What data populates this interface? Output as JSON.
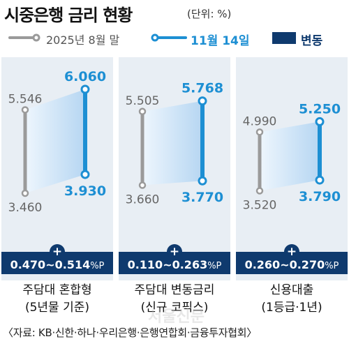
{
  "header": {
    "title": "시중은행 금리 현황",
    "unit": "(단위: %)"
  },
  "legend": {
    "items": [
      {
        "label": "2025년 8월 말",
        "color": "#9a9a9a",
        "kind": "line"
      },
      {
        "label": "11월 14일",
        "color": "#1d8fd3",
        "kind": "line"
      },
      {
        "label": "변동",
        "color": "#0f3a6e",
        "kind": "block"
      }
    ]
  },
  "chart_data": {
    "type": "range",
    "series": [
      {
        "name": "2025년 8월 말"
      },
      {
        "name": "11월 14일"
      }
    ],
    "panels": [
      {
        "category_lines": [
          "주담대 혼합형",
          "(5년물 기준)"
        ],
        "aug_high": "5.546",
        "aug_low": "3.460",
        "nov_high": "6.060",
        "nov_low": "3.930",
        "change_sign": "+",
        "change_range": "0.470~0.514",
        "change_unit": "%P",
        "values": {
          "aug": [
            3.46,
            5.546
          ],
          "nov": [
            3.93,
            6.06
          ]
        }
      },
      {
        "category_lines": [
          "주담대 변동금리",
          "(신규 코픽스)"
        ],
        "aug_high": "5.505",
        "aug_low": "3.660",
        "nov_high": "5.768",
        "nov_low": "3.770",
        "change_sign": "+",
        "change_range": "0.110~0.263",
        "change_unit": "%P",
        "values": {
          "aug": [
            3.66,
            5.505
          ],
          "nov": [
            3.77,
            5.768
          ]
        }
      },
      {
        "category_lines": [
          "신용대출",
          "(1등급·1년)"
        ],
        "aug_high": "4.990",
        "aug_low": "3.520",
        "nov_high": "5.250",
        "nov_low": "3.790",
        "change_sign": "+",
        "change_range": "0.260~0.270",
        "change_unit": "%P",
        "values": {
          "aug": [
            3.52,
            4.99
          ],
          "nov": [
            3.79,
            5.25
          ]
        }
      }
    ]
  },
  "footer": {
    "source": "〈자료: KB·신한·하나·우리은행·은행연합회·금융투자협회〉"
  },
  "watermark": {
    "text": "서울신문"
  },
  "colors": {
    "aug": "#9a9a9a",
    "nov": "#1d8fd3",
    "band": "#0f3a6e",
    "panel_bg": "#e8eef4",
    "fill_light": "#eef6fd",
    "fill_dark": "#b6d6f2"
  }
}
